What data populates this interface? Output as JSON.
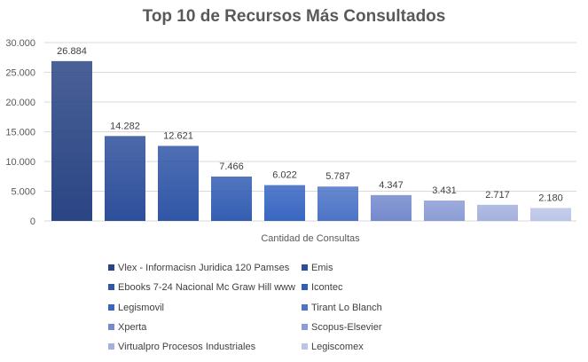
{
  "chart_data": {
    "type": "bar",
    "title": "Top 10 de Recursos Más Consultados",
    "xlabel": "Cantidad de Consultas",
    "ylabel": "",
    "ylim": [
      0,
      30000
    ],
    "yticks": [
      0,
      5000,
      10000,
      15000,
      20000,
      25000,
      30000
    ],
    "ytick_labels": [
      "0",
      "5.000",
      "10.000",
      "15.000",
      "20.000",
      "25.000",
      "30.000"
    ],
    "grid": true,
    "legend_position": "bottom",
    "series": [
      {
        "name": "Vlex - Informacisn Juridica 120 Pamses",
        "value": 26884,
        "label": "26.884",
        "color": "#2a4584"
      },
      {
        "name": "Emis",
        "value": 14282,
        "label": "14.282",
        "color": "#2d4f9a"
      },
      {
        "name": "Ebooks 7-24 Nacional Mc Graw Hill www",
        "value": 12621,
        "label": "12.621",
        "color": "#3056a6"
      },
      {
        "name": "Icontec",
        "value": 7466,
        "label": "7.466",
        "color": "#345eb3"
      },
      {
        "name": "Legismovil",
        "value": 6022,
        "label": "6.022",
        "color": "#3866c2"
      },
      {
        "name": "Tirant Lo Blanch",
        "value": 5787,
        "label": "5.787",
        "color": "#4d74c6"
      },
      {
        "name": "Xperta",
        "value": 4347,
        "label": "4.347",
        "color": "#7589cd"
      },
      {
        "name": "Scopus-Elsevier",
        "value": 3431,
        "label": "3.431",
        "color": "#8c9dd5"
      },
      {
        "name": "Virtualpro Procesos Industriales",
        "value": 2717,
        "label": "2.717",
        "color": "#a4b1de"
      },
      {
        "name": "Legiscomex",
        "value": 2180,
        "label": "2.180",
        "color": "#bbc5e7"
      }
    ]
  }
}
